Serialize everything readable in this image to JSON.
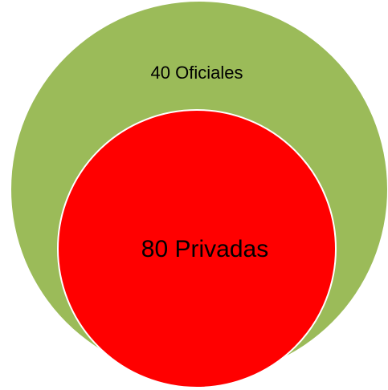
{
  "nodes": [
    {
      "label": "40 Oficiales"
    },
    {
      "label": "80 Privadas"
    }
  ]
}
